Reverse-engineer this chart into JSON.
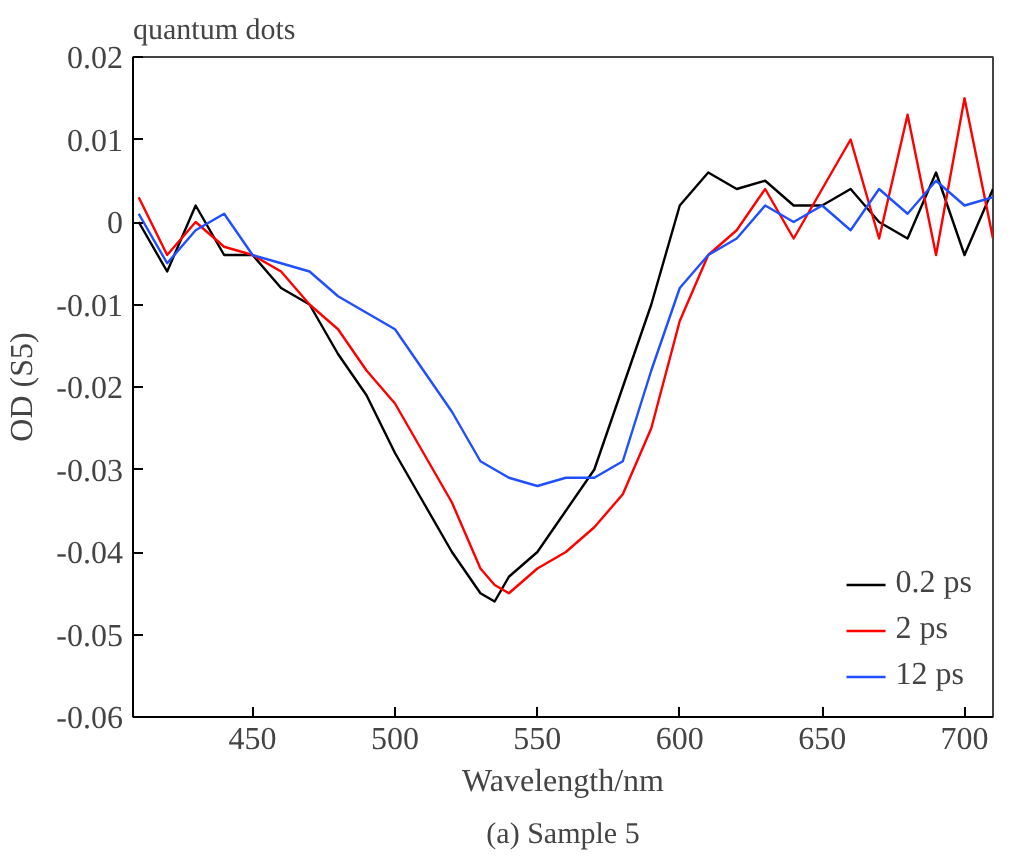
{
  "chart_data": {
    "type": "line",
    "title": "quantum dots",
    "xlabel": "Wavelength/nm",
    "ylabel": "OD (S5)",
    "annotations": [
      "(a) Sample 5"
    ],
    "x": [
      410,
      420,
      430,
      440,
      450,
      460,
      470,
      480,
      490,
      500,
      510,
      520,
      530,
      535,
      540,
      550,
      560,
      570,
      580,
      590,
      600,
      610,
      620,
      630,
      640,
      650,
      660,
      670,
      680,
      690,
      700,
      710
    ],
    "series": [
      {
        "name": "0.2 ps",
        "color": "#000000",
        "values": [
          0,
          -0.006,
          0.002,
          -0.004,
          -0.004,
          -0.008,
          -0.01,
          -0.016,
          -0.021,
          -0.028,
          -0.034,
          -0.04,
          -0.045,
          -0.046,
          -0.043,
          -0.04,
          -0.035,
          -0.03,
          -0.02,
          -0.01,
          0.002,
          0.006,
          0.004,
          0.005,
          0.002,
          0.002,
          0.004,
          0,
          -0.002,
          0.006,
          -0.004,
          0.004
        ]
      },
      {
        "name": "2 ps",
        "color": "#ff0000",
        "values": [
          0.003,
          -0.004,
          0,
          -0.003,
          -0.004,
          -0.006,
          -0.01,
          -0.013,
          -0.018,
          -0.022,
          -0.028,
          -0.034,
          -0.042,
          -0.044,
          -0.045,
          -0.042,
          -0.04,
          -0.037,
          -0.033,
          -0.025,
          -0.012,
          -0.004,
          -0.001,
          0.004,
          -0.002,
          0.004,
          0.01,
          -0.002,
          0.013,
          -0.004,
          0.015,
          -0.002
        ]
      },
      {
        "name": "12 ps",
        "color": "#1f4fff",
        "values": [
          0.001,
          -0.005,
          -0.001,
          0.001,
          -0.004,
          -0.005,
          -0.006,
          -0.009,
          -0.011,
          -0.013,
          -0.018,
          -0.023,
          -0.029,
          -0.03,
          -0.031,
          -0.032,
          -0.031,
          -0.031,
          -0.029,
          -0.018,
          -0.008,
          -0.004,
          -0.002,
          0.002,
          0,
          0.002,
          -0.001,
          0.004,
          0.001,
          0.005,
          0.002,
          0.003
        ]
      }
    ],
    "xlim": [
      408,
      710
    ],
    "xticks": [
      450,
      500,
      550,
      600,
      650,
      700
    ],
    "ylim": [
      -0.06,
      0.02
    ],
    "yticks": [
      -0.06,
      -0.05,
      -0.04,
      -0.03,
      -0.02,
      -0.01,
      0,
      0.01,
      0.02
    ],
    "grid": false,
    "legend": "bottom right",
    "line_style": "solid",
    "marker": "none"
  }
}
